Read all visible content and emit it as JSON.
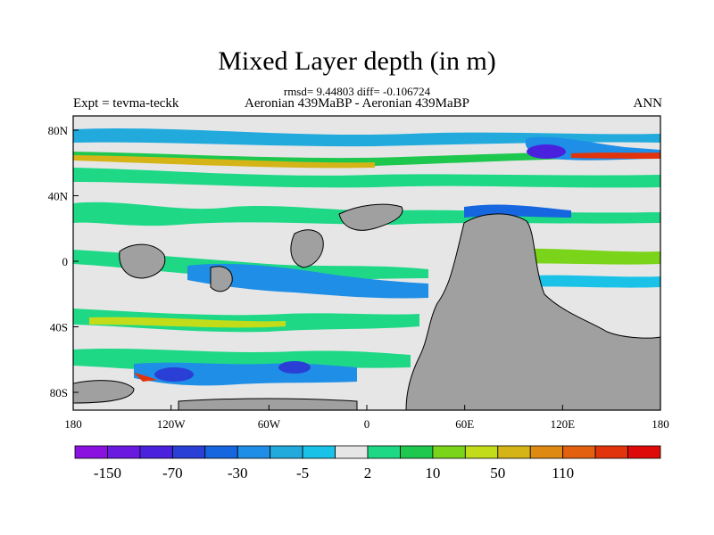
{
  "title": "Mixed Layer depth (in m)",
  "stats_line": "rmsd= 9.44803 diff= -0.106724",
  "comparison": "Aeronian 439MaBP - Aeronian 439MaBP",
  "experiment": "Expt = tevma-teckk",
  "season": "ANN",
  "map": {
    "lat_ticks": [
      "80N",
      "40N",
      "0",
      "40S",
      "80S"
    ],
    "lon_ticks": [
      "180",
      "120W",
      "60W",
      "0",
      "60E",
      "120E",
      "180"
    ],
    "land_color": "#a0a0a0",
    "neutral_color": "#e6e6e6"
  },
  "colorbar": {
    "colors": [
      "#8a11e0",
      "#6a1ae0",
      "#4a22dd",
      "#2a3fd6",
      "#1666e0",
      "#1f8ee6",
      "#22aadd",
      "#1ac2e8",
      "#e6e6e6",
      "#1ed886",
      "#1ec84e",
      "#7ad41a",
      "#c2dc1a",
      "#d4b416",
      "#de8a12",
      "#e2600e",
      "#e2340c",
      "#de0a0a"
    ],
    "labels": [
      "-150",
      "-70",
      "-30",
      "-5",
      "2",
      "10",
      "50",
      "110"
    ]
  }
}
